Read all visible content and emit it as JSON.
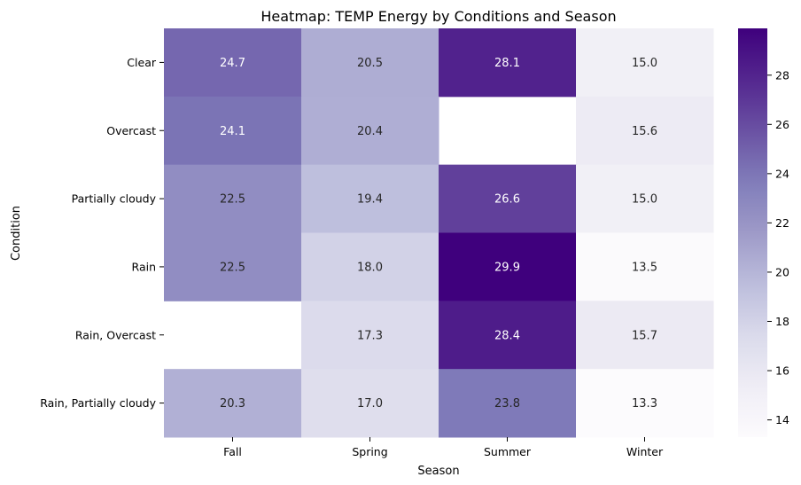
{
  "chart_data": {
    "type": "heatmap",
    "title": "Heatmap: TEMP Energy by Conditions and Season",
    "xlabel": "Season",
    "ylabel": "Condition",
    "x_categories": [
      "Fall",
      "Spring",
      "Summer",
      "Winter"
    ],
    "y_categories": [
      "Clear",
      "Overcast",
      "Partially cloudy",
      "Rain",
      "Rain, Overcast",
      "Rain, Partially cloudy"
    ],
    "values": [
      [
        24.7,
        20.5,
        28.1,
        15.0
      ],
      [
        24.1,
        20.4,
        null,
        15.6
      ],
      [
        22.5,
        19.4,
        26.6,
        15.0
      ],
      [
        22.5,
        18.0,
        29.9,
        13.5
      ],
      [
        null,
        17.3,
        28.4,
        15.7
      ],
      [
        20.3,
        17.0,
        23.8,
        13.3
      ]
    ],
    "value_format": "0.1f",
    "colormap": "Purples",
    "color_range": [
      13.3,
      29.9
    ],
    "colorbar_ticks": [
      14,
      16,
      18,
      20,
      22,
      24,
      26,
      28
    ]
  }
}
